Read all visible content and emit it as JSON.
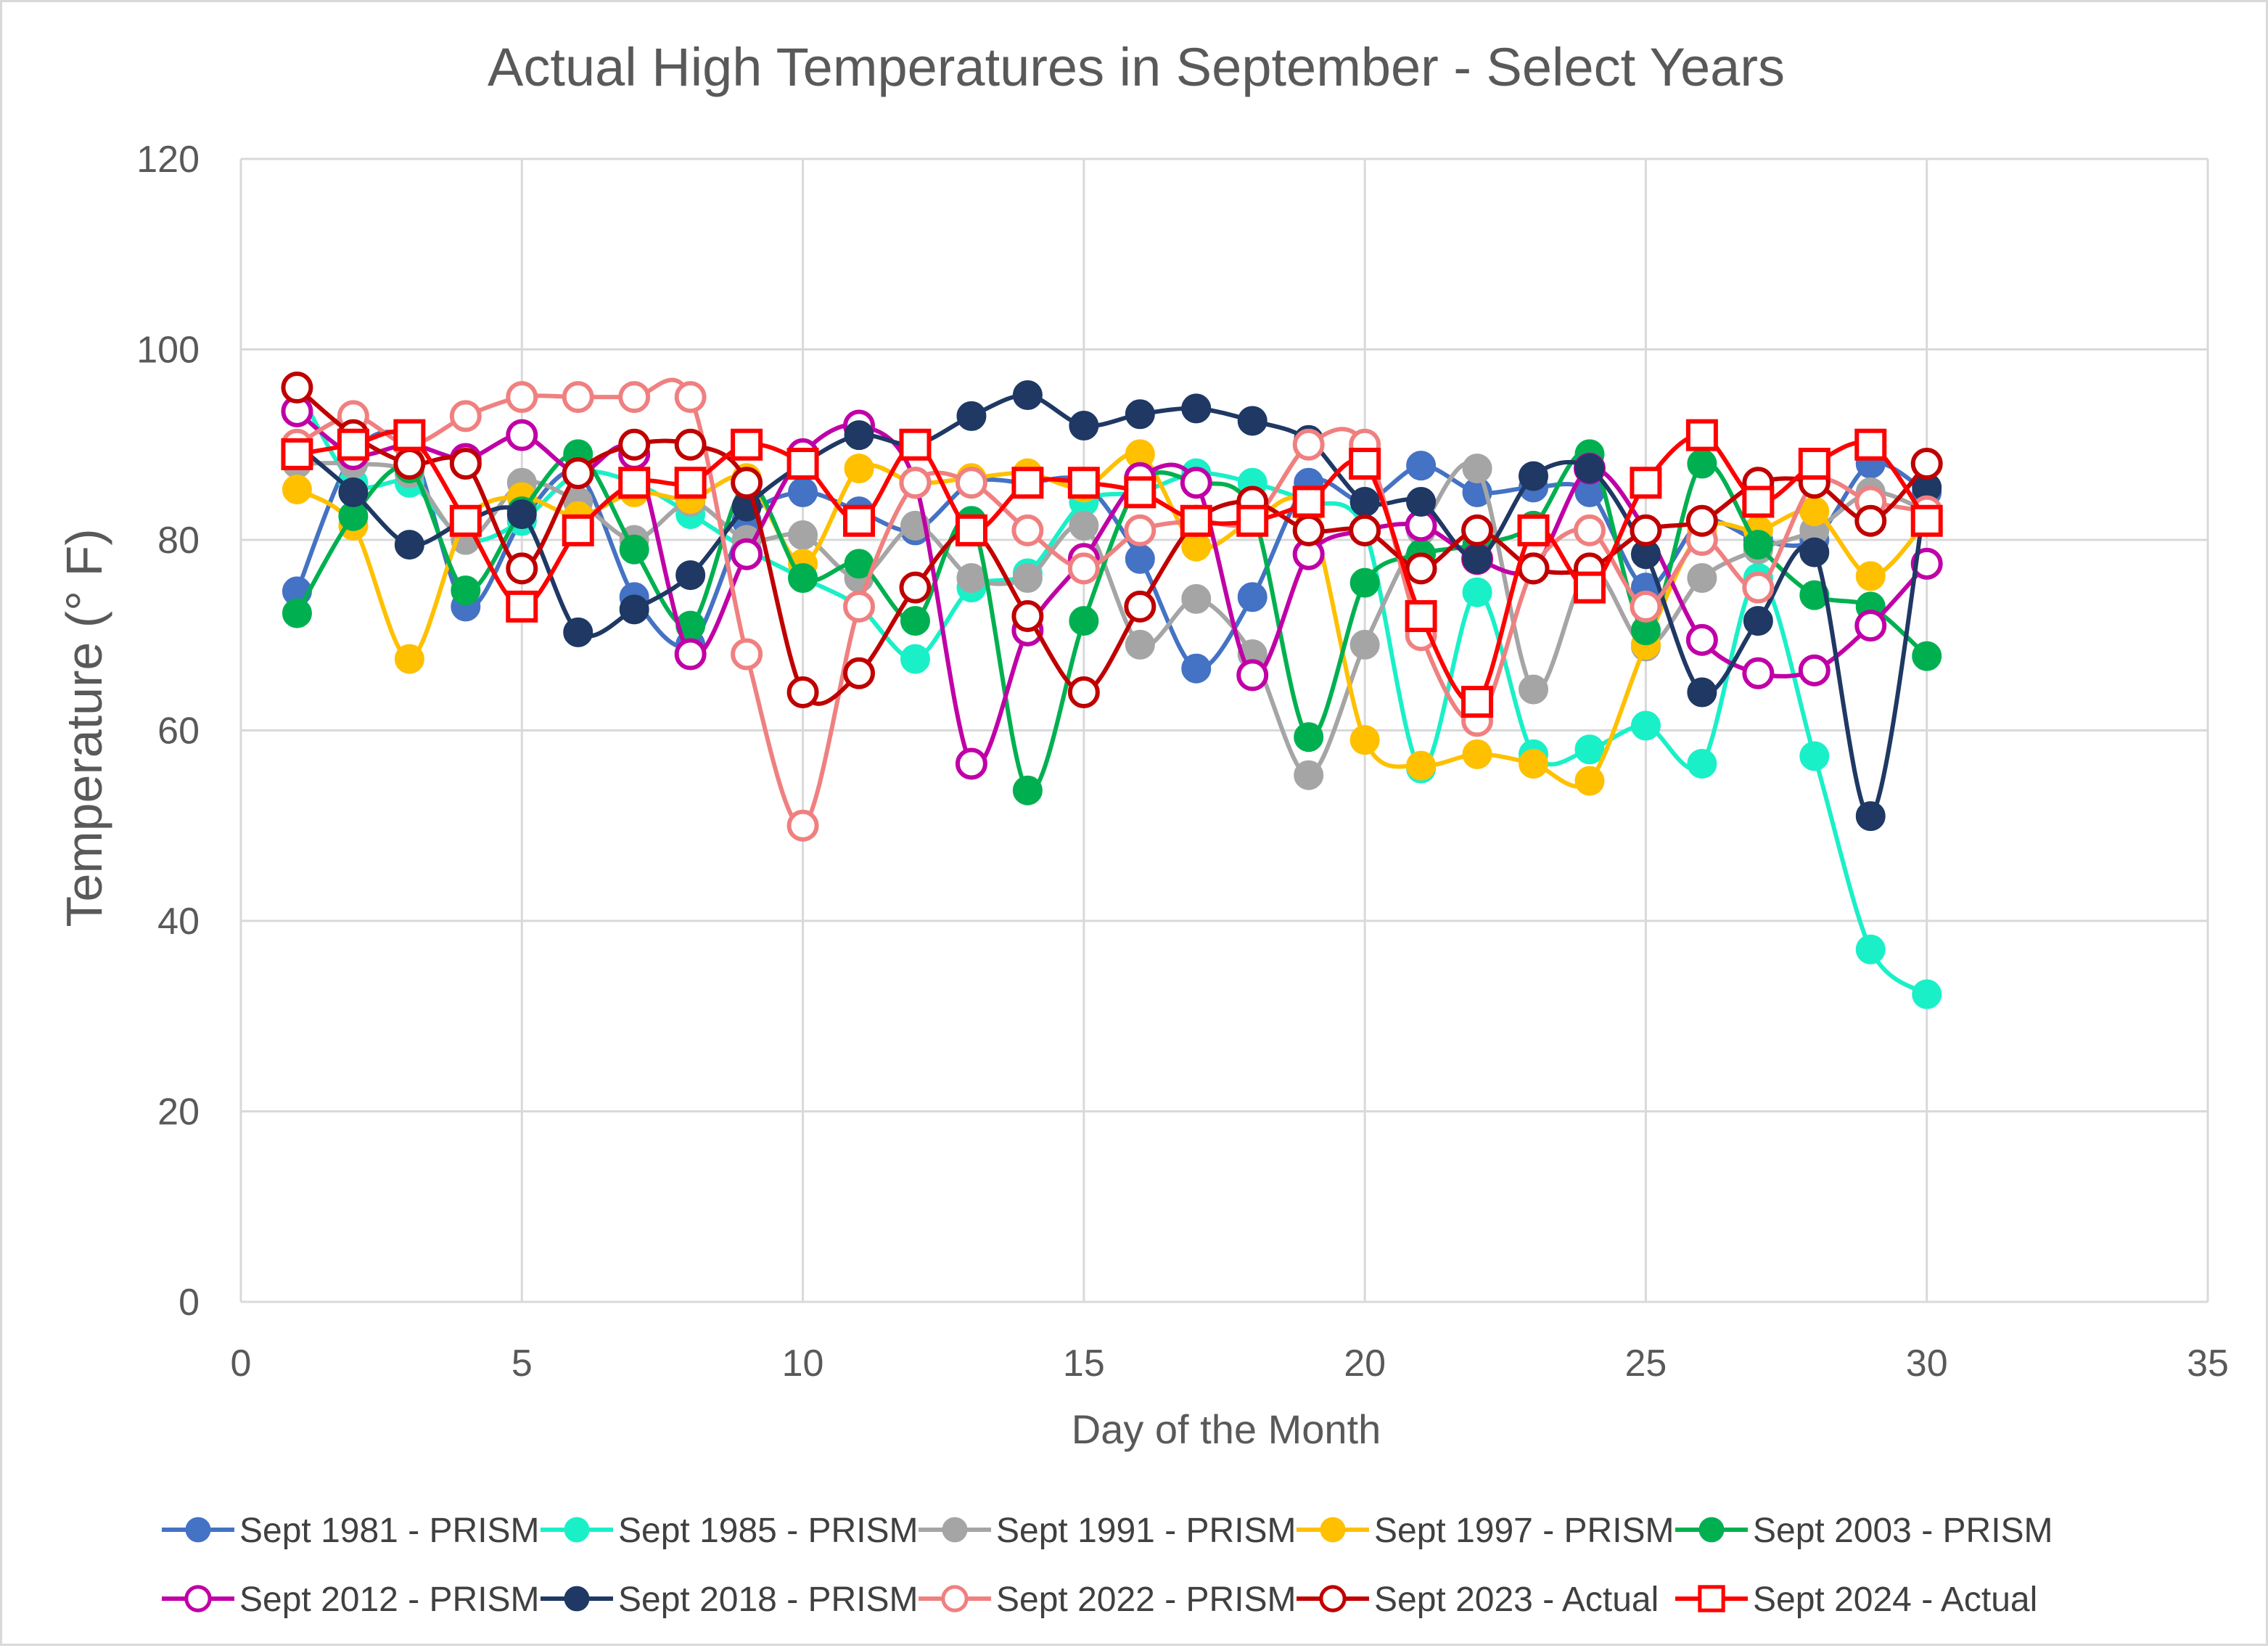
{
  "chart_data": {
    "type": "line",
    "title": "Actual High Temperatures in September - Select Years",
    "xlabel": "Day of the Month",
    "ylabel": "Temperature (° F)",
    "xlim": [
      0,
      35
    ],
    "ylim": [
      0,
      120
    ],
    "x_ticks": [
      0,
      5,
      10,
      15,
      20,
      25,
      30,
      35
    ],
    "y_ticks": [
      0,
      20,
      40,
      60,
      80,
      100,
      120
    ],
    "grid": true,
    "legend_position": "bottom",
    "x": [
      1,
      2,
      3,
      4,
      5,
      6,
      7,
      8,
      9,
      10,
      11,
      12,
      13,
      14,
      15,
      16,
      17,
      18,
      19,
      20,
      21,
      22,
      23,
      24,
      25,
      26,
      27,
      28,
      29,
      30
    ],
    "series": [
      {
        "name": "Sept 1981 - PRISM",
        "color": "#4472C4",
        "marker": "filled-circle",
        "values": [
          74.6,
          89,
          90,
          73,
          82,
          87,
          74,
          69,
          82,
          85,
          83,
          81,
          86,
          86,
          86,
          78,
          66.5,
          74,
          86,
          84,
          87.8,
          85,
          85.5,
          85,
          75,
          82,
          80,
          80,
          88,
          85
        ]
      },
      {
        "name": "Sept 1985 - PRISM",
        "color": "#1AF0C8",
        "marker": "filled-circle",
        "values": [
          96,
          86,
          86,
          80,
          82,
          87,
          86,
          82.7,
          79,
          76,
          73,
          67.5,
          75,
          76.5,
          84,
          85,
          87,
          86,
          84,
          81,
          56,
          74.5,
          57.5,
          58,
          60.5,
          56.5,
          76,
          57.3,
          37,
          32.3
        ]
      },
      {
        "name": "Sept 1991 - PRISM",
        "color": "#A5A5A5",
        "marker": "filled-circle",
        "values": [
          88,
          88,
          87,
          80,
          86,
          84,
          80,
          84,
          80,
          80.5,
          76,
          81.5,
          76,
          76,
          81.5,
          69,
          73.8,
          68,
          55.3,
          69,
          81,
          87.5,
          64.3,
          77,
          68.8,
          76,
          79,
          81,
          85,
          83
        ]
      },
      {
        "name": "Sept 1997 - PRISM",
        "color": "#FFC000",
        "marker": "filled-circle",
        "values": [
          85.3,
          81.5,
          67.5,
          82,
          84.5,
          82.5,
          85,
          84.3,
          86.5,
          77.5,
          87.5,
          86,
          86.5,
          87,
          85.5,
          89,
          79.3,
          82,
          83,
          59,
          56.3,
          57.5,
          56.5,
          54.7,
          69,
          81,
          81,
          83,
          76.2,
          82
        ]
      },
      {
        "name": "Sept 2003 - PRISM",
        "color": "#00B050",
        "marker": "filled-circle",
        "values": [
          72.3,
          82.5,
          87.5,
          74.7,
          83,
          89,
          79,
          71,
          86,
          76,
          77.5,
          71.5,
          82,
          53.7,
          71.5,
          86,
          86,
          83,
          59.3,
          75.5,
          78.5,
          79.5,
          81.5,
          89,
          70.5,
          88,
          79.5,
          74.2,
          73,
          67.8
        ]
      },
      {
        "name": "Sept 2012 - PRISM",
        "color": "#C000A6",
        "marker": "open-circle",
        "values": [
          93.5,
          89,
          90,
          88.5,
          91,
          87,
          89,
          68,
          78.5,
          89,
          92,
          86,
          56.5,
          70.5,
          78,
          86.5,
          86,
          65.8,
          78.5,
          81,
          81.5,
          78,
          77,
          87.5,
          81,
          69.5,
          66,
          66.3,
          71,
          77.5
        ]
      },
      {
        "name": "Sept 2018 - PRISM",
        "color": "#1F3864",
        "marker": "filled-circle",
        "values": [
          90,
          85,
          79.5,
          82,
          82.7,
          70.3,
          72.7,
          76.3,
          83.5,
          88,
          91,
          90,
          93,
          95.2,
          92,
          93.2,
          93.8,
          92.5,
          90.5,
          84,
          84,
          78,
          86.7,
          87.5,
          78.5,
          64,
          71.5,
          78.7,
          51,
          85.5
        ]
      },
      {
        "name": "Sept 2022 - PRISM",
        "color": "#F08080",
        "marker": "open-circle",
        "values": [
          90,
          93,
          90,
          93,
          95,
          95,
          95,
          95,
          68,
          50,
          73,
          86,
          86,
          81,
          77,
          81,
          82,
          82,
          90,
          90,
          70,
          61,
          77,
          81,
          73,
          80,
          75,
          86,
          84,
          83
        ]
      },
      {
        "name": "Sept 2023 - Actual",
        "color": "#C00000",
        "marker": "open-circle",
        "values": [
          96,
          91,
          88,
          88,
          77,
          87,
          90,
          90,
          86,
          64,
          66,
          75,
          81,
          72,
          64,
          73,
          82,
          84,
          81,
          81,
          77,
          81,
          77,
          77,
          81,
          82,
          86,
          86,
          82,
          88
        ]
      },
      {
        "name": "Sept 2024 - Actual",
        "color": "#FF0000",
        "marker": "open-square",
        "values": [
          89,
          90,
          91,
          82,
          73,
          81,
          86,
          86,
          90,
          88,
          82,
          90,
          81,
          86,
          86,
          85,
          82,
          82,
          84,
          88,
          72,
          63,
          81,
          75,
          86,
          91,
          84,
          88,
          90,
          82
        ]
      }
    ]
  }
}
